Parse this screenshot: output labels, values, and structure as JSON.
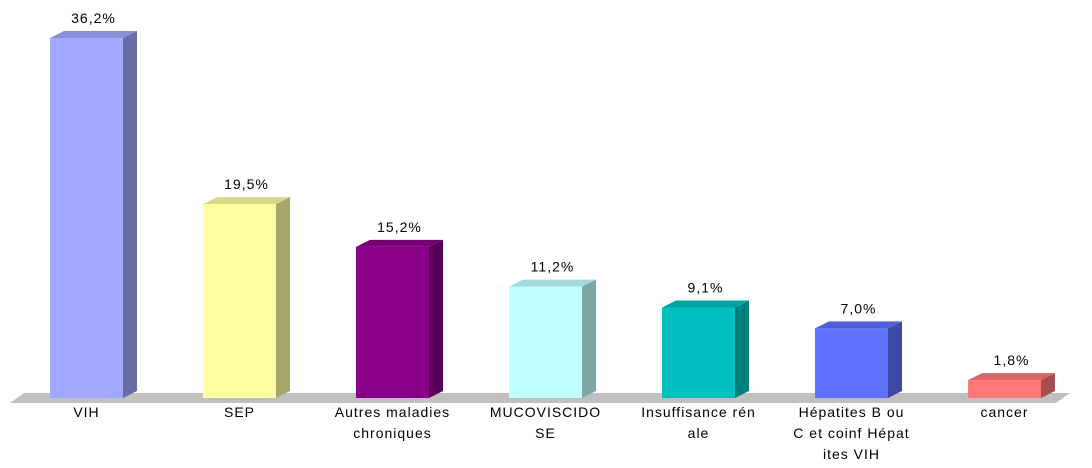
{
  "chart_data": {
    "type": "bar3d",
    "categories": [
      "VIH",
      "SEP",
      "Autres maladies chroniques",
      "MUCOVISCIDOSE",
      "Insuffisance rénale",
      "Hépatites B ou C et coinf Hépatites VIH",
      "cancer"
    ],
    "values": [
      36.2,
      19.5,
      15.2,
      11.2,
      9.1,
      7.0,
      1.8
    ],
    "value_labels": [
      "36,2%",
      "19,5%",
      "15,2%",
      "11,2%",
      "9,1%",
      "7,0%",
      "1,8%"
    ],
    "colors": [
      "#a0a8ff",
      "#ffffa0",
      "#880088",
      "#c0ffff",
      "#00c0c0",
      "#6070ff",
      "#ff7878"
    ]
  }
}
